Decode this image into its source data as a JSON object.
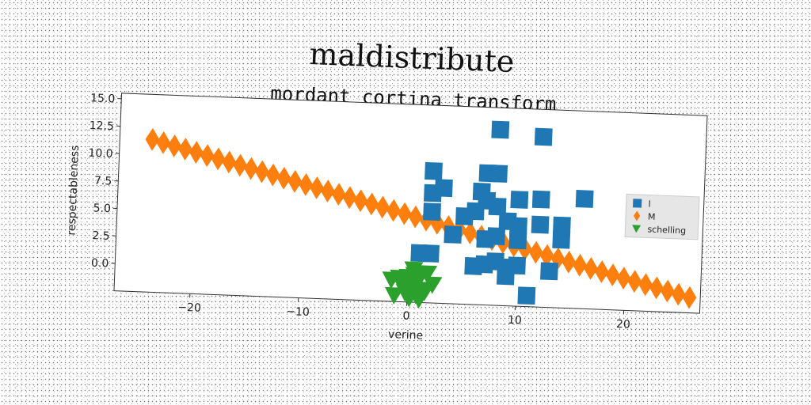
{
  "chart_data": {
    "type": "scatter",
    "title": "maldistribute",
    "subtitle": "mordant cortina transform",
    "xlabel": "verine",
    "ylabel": "respectableness",
    "xlim": [
      -27,
      27
    ],
    "ylim": [
      -2.5,
      15.5
    ],
    "xticks": [
      -20,
      -10,
      0,
      10,
      20
    ],
    "yticks": [
      0.0,
      2.5,
      5.0,
      7.5,
      10.0,
      12.5,
      15.0
    ],
    "legend_position": "center-right",
    "grid": false,
    "series": [
      {
        "name": "l",
        "marker": "square",
        "color": "#1f77b4",
        "points": [
          [
            8,
            13.5
          ],
          [
            12,
            13
          ],
          [
            2,
            9.5
          ],
          [
            7,
            9.5
          ],
          [
            8,
            9.5
          ],
          [
            3,
            8
          ],
          [
            2,
            7.5
          ],
          [
            6.5,
            7.8
          ],
          [
            7,
            7
          ],
          [
            8,
            6.5
          ],
          [
            10,
            7.2
          ],
          [
            12,
            7.3
          ],
          [
            16,
            7.5
          ],
          [
            6,
            6
          ],
          [
            2,
            5.8
          ],
          [
            5,
            5.5
          ],
          [
            9,
            5.2
          ],
          [
            10,
            4.8
          ],
          [
            12,
            5
          ],
          [
            14,
            5
          ],
          [
            4,
            3.8
          ],
          [
            7,
            3.5
          ],
          [
            8,
            3.8
          ],
          [
            10,
            3.5
          ],
          [
            14,
            3.7
          ],
          [
            1,
            2
          ],
          [
            2,
            2
          ],
          [
            6,
            1
          ],
          [
            7,
            1.2
          ],
          [
            8,
            1.5
          ],
          [
            9,
            1
          ],
          [
            10,
            1.2
          ],
          [
            9,
            0.2
          ],
          [
            13,
            0.8
          ],
          [
            11,
            -1.5
          ]
        ]
      },
      {
        "name": "M",
        "marker": "diamond",
        "color": "#ff7f0e",
        "x_start": -24,
        "x_end": 26,
        "count": 50,
        "y_start": 11.4,
        "y_end": -1.1
      },
      {
        "name": "schelling",
        "marker": "triangle_down",
        "color": "#2ca02c",
        "points": [
          [
            -1.5,
            -0.5
          ],
          [
            -0.8,
            -0.3
          ],
          [
            0,
            -0.2
          ],
          [
            0.6,
            0
          ],
          [
            1,
            -0.4
          ],
          [
            1.8,
            0.2
          ],
          [
            2.3,
            -0.8
          ],
          [
            -0.5,
            -0.9
          ],
          [
            0.3,
            -1.1
          ],
          [
            1.2,
            -1.3
          ],
          [
            -0.2,
            -1.6
          ],
          [
            0.8,
            -1.8
          ],
          [
            1.6,
            -1.5
          ],
          [
            -1.2,
            -1.9
          ],
          [
            0.2,
            -2.1
          ],
          [
            1.1,
            -2.2
          ],
          [
            0.5,
            0.5
          ],
          [
            -0.3,
            -1.3
          ]
        ]
      }
    ]
  }
}
